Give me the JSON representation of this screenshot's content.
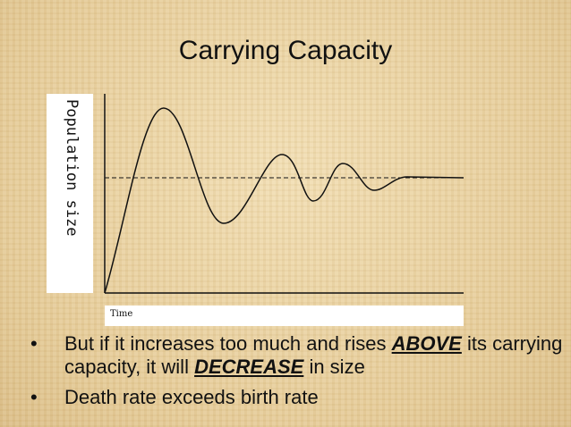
{
  "title": "Carrying Capacity",
  "diagram": {
    "y_label": "Population size",
    "x_label": "Time"
  },
  "bullets": [
    [
      "But if it increases too much and rises ",
      "ABOVE",
      " its carrying capacity, it will ",
      "DECREASE",
      " in size"
    ],
    [
      "Death rate exceeds birth rate"
    ]
  ]
}
